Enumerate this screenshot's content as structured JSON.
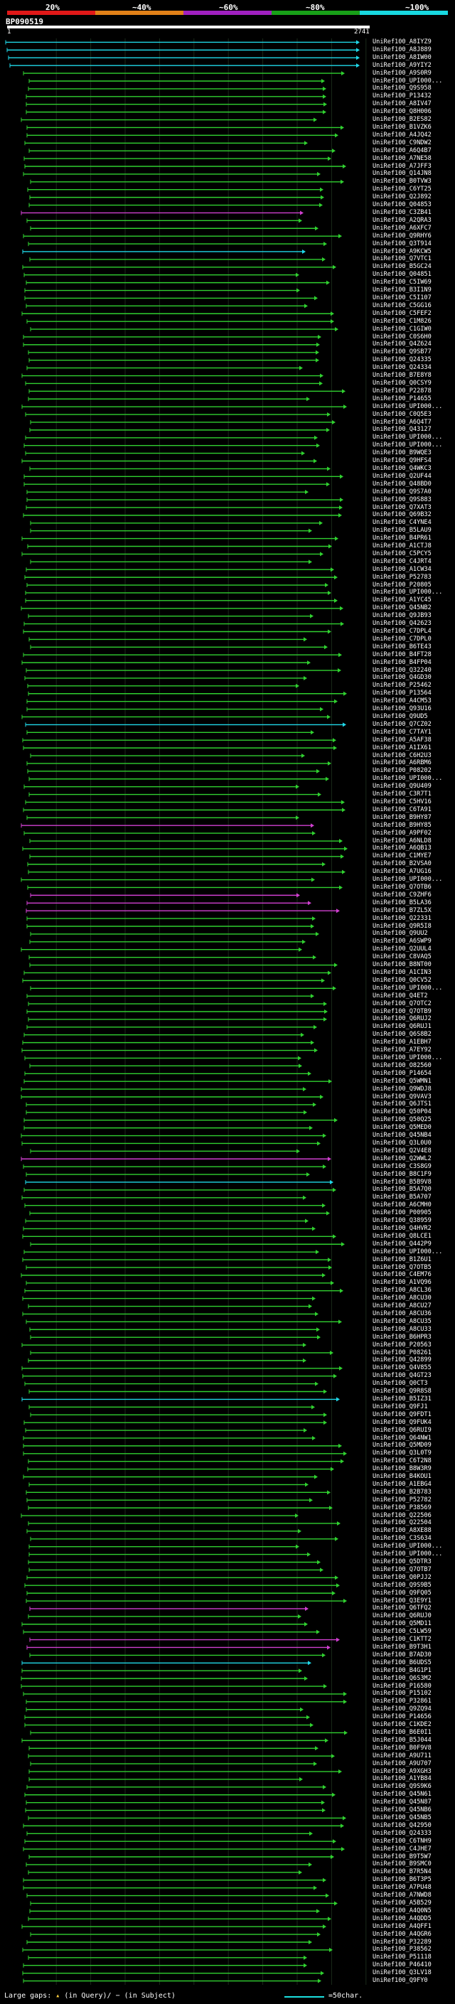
{
  "scale": {
    "labels": [
      "20%",
      "~40%",
      "~60%",
      "~80%",
      "~100%"
    ],
    "colors": [
      "#e01818",
      "#e08018",
      "#a020c0",
      "#18a018",
      "#18d8e0"
    ]
  },
  "query": {
    "name": "BP090519",
    "start": "1",
    "end": "2741"
  },
  "footer": {
    "large_gaps": "Large gaps:",
    "in_query": "(in Query)/",
    "in_subject": "(in Subject)",
    "scale_text": "=50char."
  },
  "hits": [
    "UniRef100_A8IYZ9",
    "UniRef100_A8J889",
    "UniRef100_A8IW00",
    "UniRef100_A9YIY2",
    "UniRef100_A9S0R9",
    "UniRef100_UPI000...",
    "UniRef100_Q9S958",
    "UniRef100_P13432",
    "UniRef100_A8IV47",
    "UniRef100_Q8H006",
    "UniRef100_B2ES82",
    "UniRef100_B1VZK6",
    "UniRef100_A4JQ42",
    "UniRef100_C9NDW2",
    "UniRef100_A6Q4B7",
    "UniRef100_A7NE58",
    "UniRef100_A7JFF3",
    "UniRef100_Q14JN8",
    "UniRef100_B0TVW3",
    "UniRef100_C6YT25",
    "UniRef100_Q2J892",
    "UniRef100_Q04853",
    "UniRef100_C3ZB41",
    "UniRef100_A2QRA3",
    "UniRef100_A6XFC7",
    "UniRef100_Q9RHY6",
    "UniRef100_Q3T914",
    "UniRef100_A9KCW5",
    "UniRef100_Q7VTC1",
    "UniRef100_B5GC24",
    "UniRef100_Q04851",
    "UniRef100_C5IW69",
    "UniRef100_B3I1N9",
    "UniRef100_C5I107",
    "UniRef100_C5GG16",
    "UniRef100_C5FEF2",
    "UniRef100_C1M826",
    "UniRef100_C1GIW0",
    "UniRef100_C0S6H0",
    "UniRef100_Q4Z624",
    "UniRef100_Q9SB77",
    "UniRef100_Q24335",
    "UniRef100_Q24334",
    "UniRef100_B7E8Y8",
    "UniRef100_Q0CSY9",
    "UniRef100_P22878",
    "UniRef100_P14655",
    "UniRef100_UPI000...",
    "UniRef100_C0Q5E3",
    "UniRef100_A6Q4T7",
    "UniRef100_Q43127",
    "UniRef100_UPI000...",
    "UniRef100_UPI000...",
    "UniRef100_B9WQE3",
    "UniRef100_Q9HFS4",
    "UniRef100_Q4WKC3",
    "UniRef100_Q2UF44",
    "UniRef100_Q48BD0",
    "UniRef100_Q9S7A0",
    "UniRef100_Q9S883",
    "UniRef100_Q7XAT3",
    "UniRef100_Q69B32",
    "UniRef100_C4YNE4",
    "UniRef100_B5LAU9",
    "UniRef100_B4PR61",
    "UniRef100_A1CTJ8",
    "UniRef100_C5PCY5",
    "UniRef100_C4JRT4",
    "UniRef100_A1CW34",
    "UniRef100_P52783",
    "UniRef100_P20805",
    "UniRef100_UPI000...",
    "UniRef100_A1YC45",
    "UniRef100_Q45NB2",
    "UniRef100_Q9JB93",
    "UniRef100_Q42623",
    "UniRef100_C7DPL4",
    "UniRef100_C7DPL0",
    "UniRef100_B6TE43",
    "UniRef100_B4FT28",
    "UniRef100_B4FP04",
    "UniRef100_Q32240",
    "UniRef100_Q4GD30",
    "UniRef100_P25462",
    "UniRef100_P13564",
    "UniRef100_A4CM53",
    "UniRef100_Q93U16",
    "UniRef100_Q9UD5",
    "UniRef100_Q7CZ02",
    "UniRef100_C7TAY1",
    "UniRef100_A5AF38",
    "UniRef100_A1IX61",
    "UniRef100_C6H2U3",
    "UniRef100_A6RBM6",
    "UniRef100_P08202",
    "UniRef100_UPI000...",
    "UniRef100_Q9U409",
    "UniRef100_C3R7T1",
    "UniRef100_C5HV16",
    "UniRef100_C6TA91",
    "UniRef100_B9HY87",
    "UniRef100_B9HY85",
    "UniRef100_A9PF02",
    "UniRef100_A6NLD8",
    "UniRef100_A6QB13",
    "UniRef100_C1MYE7",
    "UniRef100_B2VSA0",
    "UniRef100_A7UG16",
    "UniRef100_UPI000...",
    "UniRef100_Q7OTB6",
    "UniRef100_C9ZHF6",
    "UniRef100_B5LA36",
    "UniRef100_B7ZL5X",
    "UniRef100_Q22331",
    "UniRef100_Q9R5I8",
    "UniRef100_Q9UU2",
    "UniRef100_A6SWP9",
    "UniRef100_Q2UUL4",
    "UniRef100_C8VAQ5",
    "UniRef100_B8NT00",
    "UniRef100_A1CIN3",
    "UniRef100_Q0CV52",
    "UniRef100_UPI000...",
    "UniRef100_Q4ET2",
    "UniRef100_Q7OTC2",
    "UniRef100_Q7OTB9",
    "UniRef100_Q6RUJ2",
    "UniRef100_Q6RUJ1",
    "UniRef100_Q6S8B2",
    "UniRef100_A1EBH7",
    "UniRef100_A7EY92",
    "UniRef100_UPI000...",
    "UniRef100_O82560",
    "UniRef100_P14654",
    "UniRef100_Q5WMN1",
    "UniRef100_Q9WDJ8",
    "UniRef100_Q9VAV3",
    "UniRef100_Q6JTS1",
    "UniRef100_Q50P04",
    "UniRef100_Q50Q25",
    "UniRef100_Q5MED0",
    "UniRef100_Q45NB4",
    "UniRef100_Q3L0U0",
    "UniRef100_Q2V4E8",
    "UniRef100_Q2WWL2",
    "UniRef100_C3S8G9",
    "UniRef100_B8C1F9",
    "UniRef100_B5B9V8",
    "UniRef100_B5A7Q0",
    "UniRef100_B5A707",
    "UniRef100_A6CMH0",
    "UniRef100_P00905",
    "UniRef100_Q38959",
    "UniRef100_Q4HVR2",
    "UniRef100_Q8LCE1",
    "UniRef100_Q442P9",
    "UniRef100_UPI000...",
    "UniRef100_B1Z6U1",
    "UniRef100_Q7OTB5",
    "UniRef100_C4EM76",
    "UniRef100_A1VQ96",
    "UniRef100_A8CL36",
    "UniRef100_A8CU30",
    "UniRef100_A8CU27",
    "UniRef100_A8CU36",
    "UniRef100_A8CU35",
    "UniRef100_A8CU33",
    "UniRef100_B6HPR3",
    "UniRef100_P20563",
    "UniRef100_P08261",
    "UniRef100_Q42899",
    "UniRef100_Q4V855",
    "UniRef100_Q4GT23",
    "UniRef100_Q0CT3",
    "UniRef100_Q9R8S8",
    "UniRef100_B5IZ31",
    "UniRef100_Q9FJ1",
    "UniRef100_Q9FDT1",
    "UniRef100_Q9FUK4",
    "UniRef100_Q6RUI9",
    "UniRef100_Q64NW1",
    "UniRef100_Q5MD09",
    "UniRef100_Q3L0T9",
    "UniRef100_C6T2N8",
    "UniRef100_B8W3R9",
    "UniRef100_B4KOU1",
    "UniRef100_A1EBG4",
    "UniRef100_B2B783",
    "UniRef100_P52782",
    "UniRef100_P38569",
    "UniRef100_Q22506",
    "UniRef100_Q22504",
    "UniRef100_A8XE88",
    "UniRef100_C3S634",
    "UniRef100_UPI000...",
    "UniRef100_UPI000...",
    "UniRef100_Q5DTR3",
    "UniRef100_Q7OTB7",
    "UniRef100_Q0PJJ2",
    "UniRef100_Q9S9B5",
    "UniRef100_Q9FQ05",
    "UniRef100_Q3E9Y1",
    "UniRef100_Q6TFQ2",
    "UniRef100_Q6RUJ0",
    "UniRef100_Q5MD11",
    "UniRef100_C5LW59",
    "UniRef100_C1KTT2",
    "UniRef100_B9T3H1",
    "UniRef100_B7AD30",
    "UniRef100_B6UDS5",
    "UniRef100_B4G1P1",
    "UniRef100_Q6S3M2",
    "UniRef100_P16580",
    "UniRef100_P15102",
    "UniRef100_P32861",
    "UniRef100_Q9ZQ94",
    "UniRef100_P14656",
    "UniRef100_C1KDE2",
    "UniRef100_B6E0I1",
    "UniRef100_B5J044",
    "UniRef100_B0F9V8",
    "UniRef100_A9U711",
    "UniRef100_A9U707",
    "UniRef100_A9XGH3",
    "UniRef100_A1YB84",
    "UniRef100_Q9S9K6",
    "UniRef100_Q45N61",
    "UniRef100_Q45N87",
    "UniRef100_Q45NB6",
    "UniRef100_Q45NB5",
    "UniRef100_Q42950",
    "UniRef100_Q24333",
    "UniRef100_C6TNH9",
    "UniRef100_C4JHE7",
    "UniRef100_B9T5W7",
    "UniRef100_B9SMC0",
    "UniRef100_B7R5N4",
    "UniRef100_B6T3P5",
    "UniRef100_A7PU48",
    "UniRef100_A7NWD8",
    "UniRef100_A5B529",
    "UniRef100_A4Q0N5",
    "UniRef100_A4QDD5",
    "UniRef100_A4QFF1",
    "UniRef100_A4QGR6",
    "UniRef100_P32289",
    "UniRef100_P38562",
    "UniRef100_P51118",
    "UniRef100_P46410",
    "UniRef100_Q3LV18",
    "UniRef100_Q9FY0"
  ]
}
